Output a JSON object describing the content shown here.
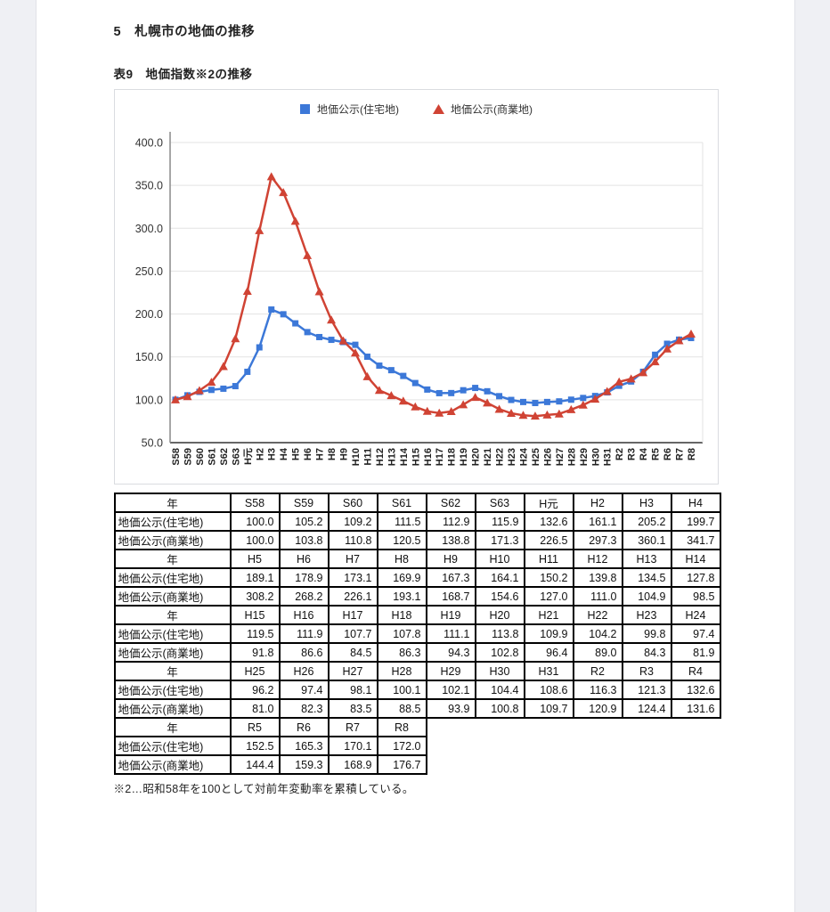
{
  "page": {
    "heading": "5　札幌市の地価の推移",
    "table_title": "表9　地価指数※2の推移",
    "footnote": "※2…昭和58年を100として対前年変動率を累積している。"
  },
  "chart_data": {
    "type": "line",
    "title": "地価指数※2の推移",
    "legend_position": "top",
    "grid": true,
    "ylim": [
      50.0,
      400.0
    ],
    "ytick_labels": [
      "400.0",
      "350.0",
      "300.0",
      "250.0",
      "200.0",
      "150.0",
      "100.0",
      "50.0"
    ],
    "categories": [
      "S58",
      "S59",
      "S60",
      "S61",
      "S62",
      "S63",
      "H元",
      "H2",
      "H3",
      "H4",
      "H5",
      "H6",
      "H7",
      "H8",
      "H9",
      "H10",
      "H11",
      "H12",
      "H13",
      "H14",
      "H15",
      "H16",
      "H17",
      "H18",
      "H19",
      "H20",
      "H21",
      "H22",
      "H23",
      "H24",
      "H25",
      "H26",
      "H27",
      "H28",
      "H29",
      "H30",
      "H31",
      "R2",
      "R3",
      "R4",
      "R5",
      "R6",
      "R7",
      "R8"
    ],
    "series": [
      {
        "name": "地価公示(住宅地)",
        "marker": "square",
        "color": "#3c78d8",
        "values": [
          100.0,
          105.2,
          109.2,
          111.5,
          112.9,
          115.9,
          132.6,
          161.1,
          205.2,
          199.7,
          189.1,
          178.9,
          173.1,
          169.9,
          167.3,
          164.1,
          150.2,
          139.8,
          134.5,
          127.8,
          119.5,
          111.9,
          107.7,
          107.8,
          111.1,
          113.8,
          109.9,
          104.2,
          99.8,
          97.4,
          96.2,
          97.4,
          98.1,
          100.1,
          102.1,
          104.4,
          108.6,
          116.3,
          121.3,
          132.6,
          152.5,
          165.3,
          170.1,
          172.0
        ]
      },
      {
        "name": "地価公示(商業地)",
        "marker": "triangle",
        "color": "#d04334",
        "values": [
          100.0,
          103.8,
          110.8,
          120.5,
          138.8,
          171.3,
          226.5,
          297.3,
          360.1,
          341.7,
          308.2,
          268.2,
          226.1,
          193.1,
          168.7,
          154.6,
          127.0,
          111.0,
          104.9,
          98.5,
          91.8,
          86.6,
          84.5,
          86.3,
          94.3,
          102.8,
          96.4,
          89.0,
          84.3,
          81.9,
          81.0,
          82.3,
          83.5,
          88.5,
          93.9,
          100.8,
          109.7,
          120.9,
          124.4,
          131.6,
          144.4,
          159.3,
          168.9,
          176.7
        ]
      }
    ],
    "colors": {
      "grid": "#e3e3e3",
      "axis": "#8a8a8a",
      "baseline": "#333333",
      "tick_text": "#333333",
      "label_text": "#222222"
    }
  },
  "table": {
    "year_header": "年",
    "row_labels": [
      "地価公示(住宅地)",
      "地価公示(商業地)"
    ],
    "section_starts": [
      0,
      10,
      20,
      30,
      40
    ],
    "section_size": 10
  }
}
